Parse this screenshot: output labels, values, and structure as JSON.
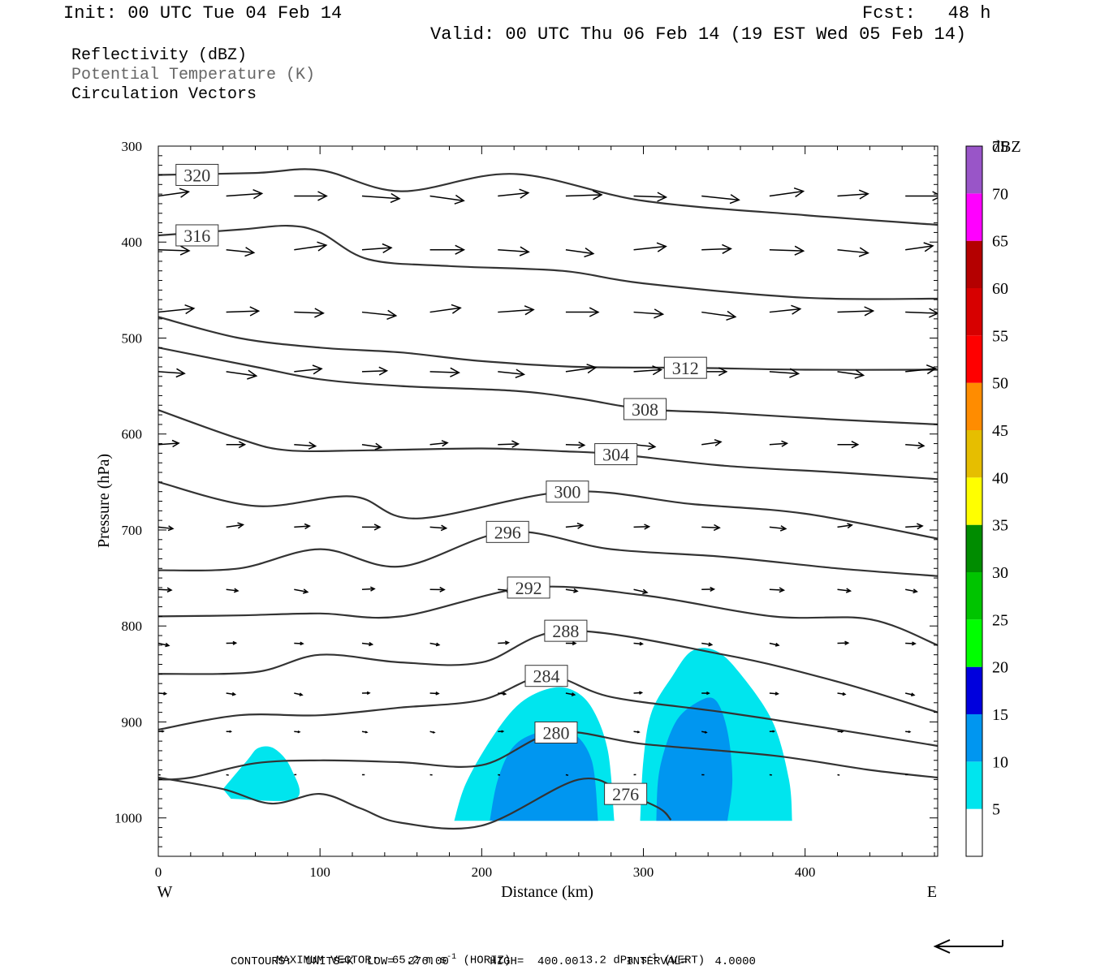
{
  "header": {
    "init": "Init: 00 UTC Tue 04 Feb 14",
    "fcst": "Fcst:   48 h",
    "valid": "Valid: 00 UTC Thu 06 Feb 14 (19 EST Wed 05 Feb 14)"
  },
  "legend": {
    "line1": "Reflectivity (dBZ)",
    "line2": "Potential Temperature (K)",
    "line3": "Circulation Vectors",
    "line2_color": "#666666"
  },
  "footer": {
    "max_vector_label": "MAXIMUM VECTOR:",
    "horiz_value": "65.2 m s",
    "horiz_exp": "-1",
    "horiz_tag": "(HORIZ)",
    "vert_value": "13.2 dPa s",
    "vert_exp": "-1",
    "vert_tag": "(VERT)",
    "contours": "CONTOURS:  UNITS=K  LOW=  276.00      HIGH=  400.00       INTERVAL=    4.0000"
  },
  "colorbar": {
    "unit": "dBZ",
    "levels": [
      5,
      10,
      15,
      20,
      25,
      30,
      35,
      40,
      45,
      50,
      55,
      60,
      65,
      70,
      75
    ],
    "colors": [
      "#ffffff",
      "#00e5ee",
      "#0096f0",
      "#0000dd",
      "#00ff00",
      "#00c400",
      "#008c00",
      "#ffff00",
      "#e6be00",
      "#ff8c00",
      "#ff0000",
      "#d70000",
      "#b40000",
      "#ff00ff",
      "#9955c8"
    ]
  },
  "chart_data": {
    "type": "cross-section",
    "xlabel": "Distance (km)",
    "ylabel": "Pressure (hPa)",
    "xlim": [
      0,
      482
    ],
    "ylim": [
      1040,
      300
    ],
    "x_ticks": [
      0,
      100,
      200,
      300,
      400
    ],
    "y_ticks": [
      300,
      400,
      500,
      600,
      700,
      800,
      900,
      1000
    ],
    "x_end_labels": {
      "left": "W",
      "right": "E"
    },
    "theta_contours": [
      {
        "label": "320",
        "label_at": [
          24,
          330
        ],
        "pts": [
          [
            0,
            330
          ],
          [
            60,
            328
          ],
          [
            100,
            325
          ],
          [
            150,
            347
          ],
          [
            220,
            329
          ],
          [
            300,
            357
          ],
          [
            400,
            372
          ],
          [
            482,
            382
          ]
        ]
      },
      {
        "label": "316",
        "label_at": [
          24,
          393
        ],
        "pts": [
          [
            0,
            393
          ],
          [
            50,
            387
          ],
          [
            80,
            383
          ],
          [
            100,
            390
          ],
          [
            130,
            418
          ],
          [
            180,
            425
          ],
          [
            250,
            430
          ],
          [
            300,
            443
          ],
          [
            400,
            458
          ],
          [
            482,
            459
          ]
        ]
      },
      {
        "label": "312",
        "label_at": [
          326,
          531
        ],
        "pts": [
          [
            0,
            478
          ],
          [
            50,
            500
          ],
          [
            100,
            510
          ],
          [
            150,
            515
          ],
          [
            200,
            524
          ],
          [
            260,
            530
          ],
          [
            330,
            531
          ],
          [
            400,
            533
          ],
          [
            482,
            533
          ]
        ]
      },
      {
        "label": "308",
        "label_at": [
          301,
          574
        ],
        "pts": [
          [
            0,
            510
          ],
          [
            60,
            530
          ],
          [
            100,
            543
          ],
          [
            150,
            550
          ],
          [
            220,
            555
          ],
          [
            260,
            563
          ],
          [
            300,
            574
          ],
          [
            350,
            578
          ],
          [
            420,
            585
          ],
          [
            482,
            590
          ]
        ]
      },
      {
        "label": "304",
        "label_at": [
          283,
          621
        ],
        "pts": [
          [
            0,
            575
          ],
          [
            50,
            605
          ],
          [
            80,
            617
          ],
          [
            130,
            617
          ],
          [
            200,
            615
          ],
          [
            250,
            618
          ],
          [
            283,
            621
          ],
          [
            350,
            633
          ],
          [
            420,
            640
          ],
          [
            482,
            647
          ]
        ]
      },
      {
        "label": "300",
        "label_at": [
          253,
          660
        ],
        "pts": [
          [
            0,
            650
          ],
          [
            60,
            675
          ],
          [
            120,
            665
          ],
          [
            160,
            688
          ],
          [
            253,
            660
          ],
          [
            330,
            673
          ],
          [
            400,
            683
          ],
          [
            482,
            709
          ]
        ]
      },
      {
        "label": "296",
        "label_at": [
          216,
          702
        ],
        "pts": [
          [
            0,
            742
          ],
          [
            50,
            740
          ],
          [
            100,
            720
          ],
          [
            150,
            738
          ],
          [
            216,
            702
          ],
          [
            280,
            720
          ],
          [
            350,
            728
          ],
          [
            420,
            740
          ],
          [
            482,
            748
          ]
        ]
      },
      {
        "label": "292",
        "label_at": [
          229,
          760
        ],
        "pts": [
          [
            0,
            790
          ],
          [
            50,
            789
          ],
          [
            100,
            787
          ],
          [
            150,
            790
          ],
          [
            229,
            760
          ],
          [
            300,
            768
          ],
          [
            380,
            790
          ],
          [
            440,
            793
          ],
          [
            482,
            820
          ]
        ]
      },
      {
        "label": "288",
        "label_at": [
          252,
          805
        ],
        "pts": [
          [
            0,
            850
          ],
          [
            60,
            848
          ],
          [
            100,
            830
          ],
          [
            150,
            838
          ],
          [
            200,
            838
          ],
          [
            252,
            805
          ],
          [
            350,
            830
          ],
          [
            420,
            858
          ],
          [
            482,
            890
          ]
        ]
      },
      {
        "label": "284",
        "label_at": [
          240,
          852
        ],
        "pts": [
          [
            0,
            908
          ],
          [
            50,
            893
          ],
          [
            100,
            893
          ],
          [
            150,
            885
          ],
          [
            200,
            877
          ],
          [
            240,
            852
          ],
          [
            280,
            874
          ],
          [
            350,
            890
          ],
          [
            420,
            908
          ],
          [
            482,
            925
          ]
        ]
      },
      {
        "label": "280",
        "label_at": [
          246,
          911
        ],
        "pts": [
          [
            0,
            960
          ],
          [
            20,
            958
          ],
          [
            60,
            943
          ],
          [
            100,
            940
          ],
          [
            150,
            942
          ],
          [
            200,
            945
          ],
          [
            246,
            911
          ],
          [
            300,
            923
          ],
          [
            380,
            935
          ],
          [
            440,
            950
          ],
          [
            482,
            958
          ]
        ]
      },
      {
        "label": "276",
        "label_at": [
          289,
          975
        ],
        "pts": [
          [
            0,
            958
          ],
          [
            40,
            970
          ],
          [
            70,
            985
          ],
          [
            100,
            975
          ],
          [
            125,
            990
          ],
          [
            150,
            1005
          ],
          [
            200,
            1008
          ],
          [
            260,
            960
          ],
          [
            289,
            975
          ],
          [
            310,
            990
          ],
          [
            317,
            1002
          ]
        ]
      }
    ],
    "reflectivity_cells": [
      {
        "dbz": 5,
        "pts": [
          [
            40,
            970
          ],
          [
            55,
            940
          ],
          [
            62,
            927
          ],
          [
            72,
            928
          ],
          [
            82,
            948
          ],
          [
            85,
            980
          ],
          [
            45,
            980
          ]
        ]
      },
      {
        "dbz": 5,
        "pts": [
          [
            183,
            1003
          ],
          [
            190,
            965
          ],
          [
            205,
            920
          ],
          [
            222,
            883
          ],
          [
            240,
            866
          ],
          [
            255,
            866
          ],
          [
            268,
            885
          ],
          [
            278,
            930
          ],
          [
            282,
            1003
          ]
        ]
      },
      {
        "dbz": 10,
        "pts": [
          [
            205,
            1003
          ],
          [
            210,
            960
          ],
          [
            220,
            925
          ],
          [
            237,
            910
          ],
          [
            255,
            910
          ],
          [
            268,
            940
          ],
          [
            272,
            1003
          ]
        ]
      },
      {
        "dbz": 5,
        "pts": [
          [
            298,
            1003
          ],
          [
            300,
            940
          ],
          [
            305,
            890
          ],
          [
            318,
            852
          ],
          [
            330,
            826
          ],
          [
            345,
            826
          ],
          [
            360,
            850
          ],
          [
            380,
            900
          ],
          [
            390,
            960
          ],
          [
            392,
            1003
          ]
        ]
      },
      {
        "dbz": 10,
        "pts": [
          [
            308,
            1003
          ],
          [
            310,
            950
          ],
          [
            320,
            900
          ],
          [
            335,
            878
          ],
          [
            345,
            878
          ],
          [
            352,
            910
          ],
          [
            355,
            960
          ],
          [
            352,
            1003
          ]
        ]
      }
    ],
    "wind_vectors": {
      "rows_hpa": [
        352,
        408,
        473,
        535,
        611,
        697,
        762,
        818,
        870,
        910,
        955
      ],
      "arrow_lengths": [
        42,
        38,
        40,
        34,
        24,
        20,
        16,
        12,
        10,
        6,
        3
      ],
      "columns_km": [
        0,
        42,
        84,
        126,
        168,
        210,
        252,
        294,
        336,
        378,
        420,
        462
      ]
    },
    "max_vector": {
      "horiz": "65.2 m s-1",
      "vert": "13.2 dPa s-1"
    }
  }
}
